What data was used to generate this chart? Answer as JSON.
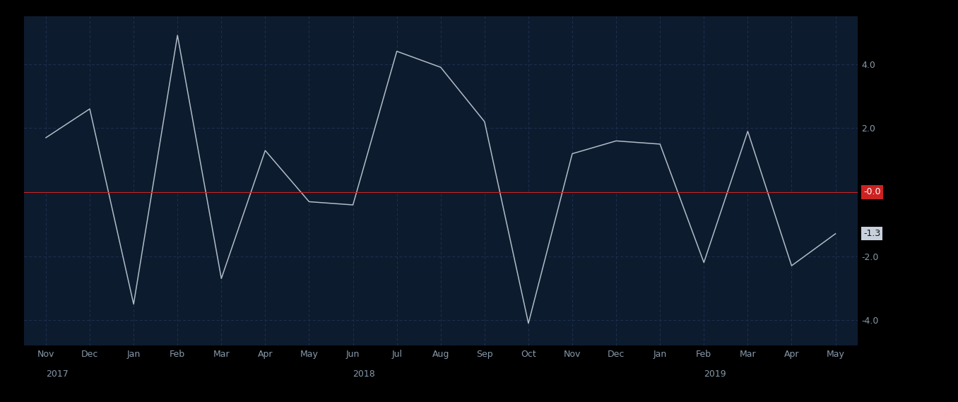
{
  "x_labels": [
    "Nov",
    "Dec",
    "Jan",
    "Feb",
    "Mar",
    "Apr",
    "May",
    "Jun",
    "Jul",
    "Aug",
    "Sep",
    "Oct",
    "Nov",
    "Dec",
    "Jan",
    "Feb",
    "Mar",
    "Apr",
    "May"
  ],
  "x_year_labels": [
    [
      "2017",
      0
    ],
    [
      "2018",
      7
    ],
    [
      "2019",
      15
    ]
  ],
  "values": [
    1.7,
    2.6,
    -3.5,
    4.9,
    -2.7,
    1.3,
    -0.3,
    -0.4,
    4.4,
    3.9,
    2.2,
    -4.1,
    1.2,
    1.6,
    1.5,
    -2.2,
    1.9,
    -2.3,
    -1.3
  ],
  "background_color": "#000000",
  "plot_bg_color": "#0d1b2e",
  "fill_color": "#0d1b2e",
  "line_color": "#b0bcc8",
  "grid_color": "#1e3050",
  "zero_line_color": "#cc2222",
  "zero_label_bg": "#cc2222",
  "zero_label_color": "#ffffff",
  "last_label_bg": "#c8d0dc",
  "last_label_color": "#111111",
  "tick_label_color": "#8899aa",
  "year_label_color": "#8899aa",
  "ylim": [
    -4.8,
    5.5
  ],
  "yticks": [
    -4.0,
    -2.0,
    0.0,
    2.0,
    4.0
  ],
  "last_value": -1.3,
  "zero_ref": 0.0
}
